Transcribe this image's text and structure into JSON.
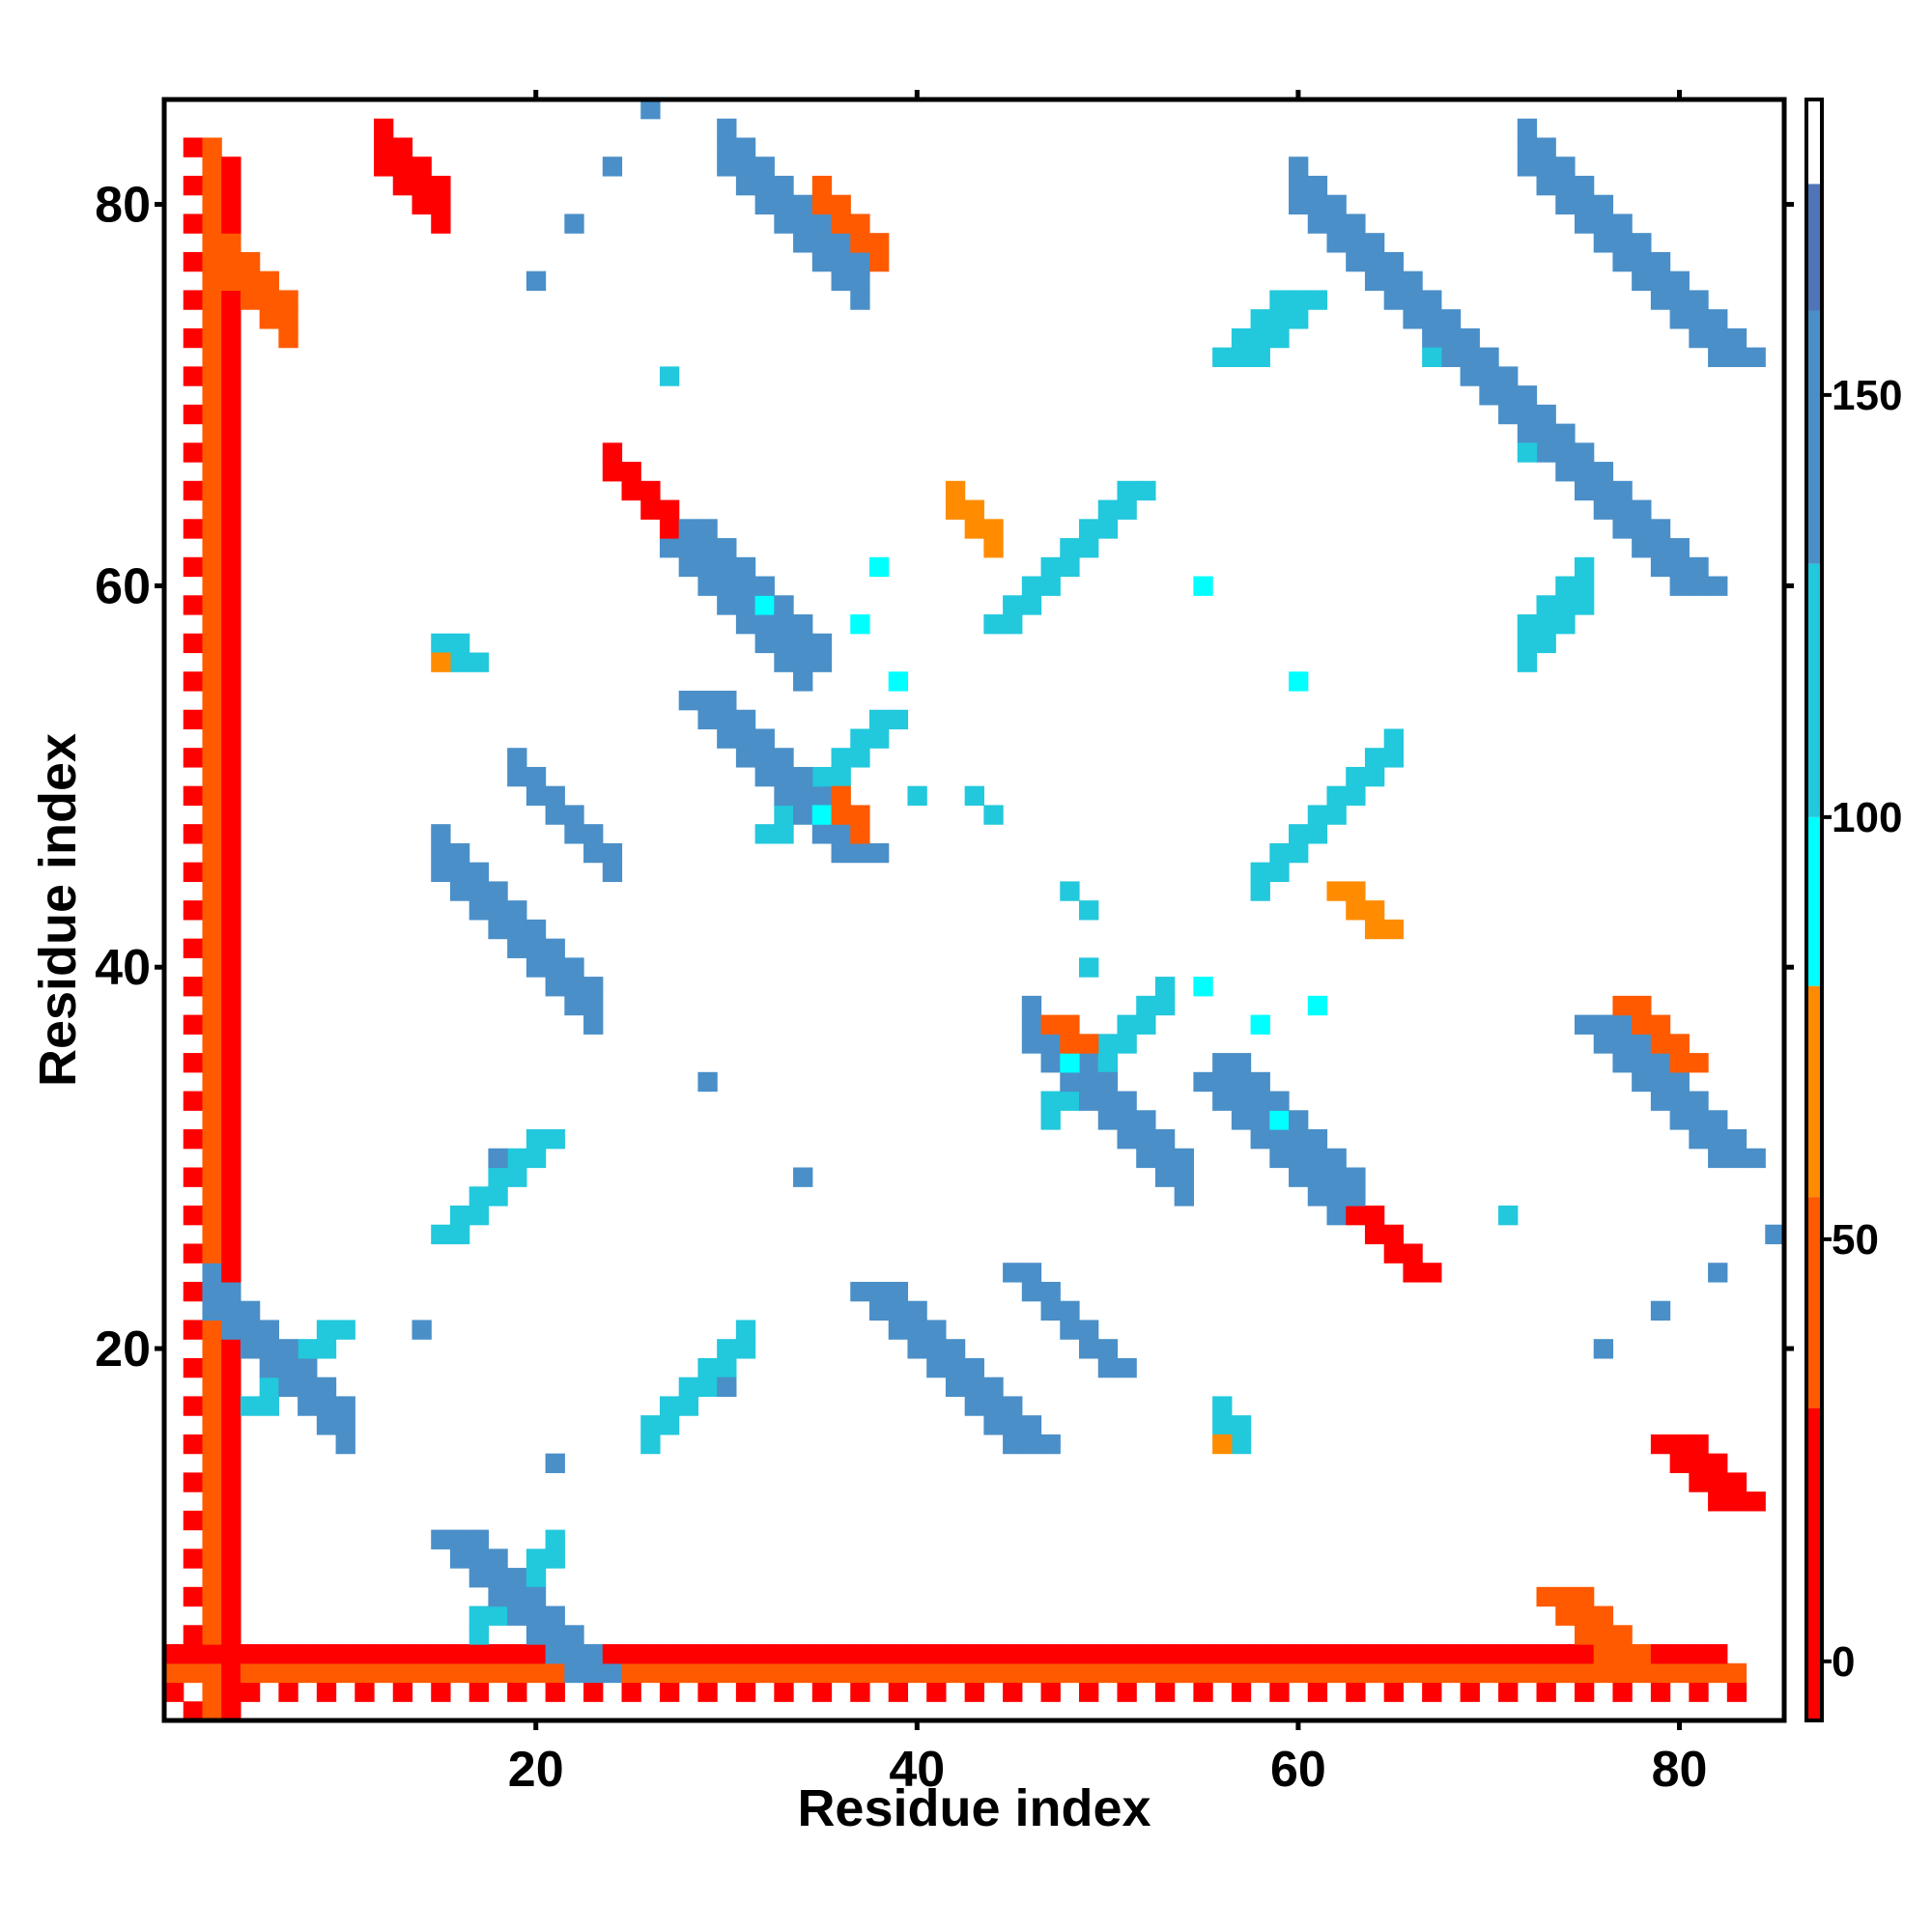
{
  "chart_data": {
    "type": "heatmap",
    "title": "",
    "xlabel": "Residue index",
    "ylabel": "Residue index",
    "xlim": [
      0.5,
      85.5
    ],
    "ylim": [
      0.5,
      85.5
    ],
    "x_ticks": [
      20,
      40,
      60,
      80
    ],
    "y_ticks": [
      20,
      40,
      60,
      80
    ],
    "grid": false,
    "colorbar": {
      "range": [
        -7,
        185
      ],
      "ticks": [
        0,
        50,
        100,
        150
      ],
      "bands": [
        {
          "from": -7,
          "to": 30,
          "color": "#ff0000"
        },
        {
          "from": 30,
          "to": 55,
          "color": "#ff5a00"
        },
        {
          "from": 55,
          "to": 80,
          "color": "#ff8c00"
        },
        {
          "from": 80,
          "to": 100,
          "color": "#00ffff"
        },
        {
          "from": 100,
          "to": 130,
          "color": "#22c8dc"
        },
        {
          "from": 130,
          "to": 160,
          "color": "#4a8fc8"
        },
        {
          "from": 160,
          "to": 175,
          "color": "#4f74b8"
        },
        {
          "from": 175,
          "to": 185,
          "color": "#ffffff"
        }
      ]
    },
    "palette": {
      "red": "#ff0000",
      "red_orange": "#ff5a00",
      "orange": "#ff8c00",
      "cyan": "#00ffff",
      "light_blue": "#22c8dc",
      "blue": "#4a8fc8"
    },
    "matrix_size": 85,
    "symmetric": true,
    "lower_triangle_segments": [
      {
        "start": [
          2,
          1
        ],
        "len": 84,
        "di": 0,
        "dj": 1,
        "w": 1,
        "v": 0,
        "stride": 2
      },
      {
        "start": [
          3,
          1
        ],
        "len": 83,
        "di": 0,
        "dj": 1,
        "w": 1,
        "v": 40
      },
      {
        "start": [
          4,
          1
        ],
        "len": 82,
        "di": 0,
        "dj": 1,
        "w": 1,
        "v": 10
      },
      {
        "start": [
          17,
          5
        ],
        "len": 5,
        "di": 1,
        "dj": 1,
        "w": 2,
        "v": 110
      },
      {
        "start": [
          26,
          15
        ],
        "len": 6,
        "di": 1,
        "dj": 1,
        "w": 2,
        "v": 110
      },
      {
        "start": [
          47,
          32
        ],
        "len": 7,
        "di": 1,
        "dj": 1,
        "w": 2,
        "v": 120
      },
      {
        "start": [
          58,
          44
        ],
        "len": 8,
        "di": 1,
        "dj": 1,
        "w": 2,
        "v": 115
      },
      {
        "start": [
          72,
          56
        ],
        "len": 4,
        "di": 1,
        "dj": 1,
        "w": 3,
        "v": 105
      },
      {
        "start": [
          3,
          22
        ],
        "len": 8,
        "di": 1,
        "dj": -1,
        "w": 3,
        "v": 140
      },
      {
        "start": [
          15,
          45
        ],
        "len": 9,
        "di": 1,
        "dj": -1,
        "w": 3,
        "v": 140
      },
      {
        "start": [
          19,
          50
        ],
        "len": 6,
        "di": 1,
        "dj": -1,
        "w": 2,
        "v": 138
      },
      {
        "start": [
          27,
          62
        ],
        "len": 8,
        "di": 1,
        "dj": -1,
        "w": 3,
        "v": 142
      },
      {
        "start": [
          29,
          62
        ],
        "len": 7,
        "di": 1,
        "dj": -1,
        "w": 2,
        "v": 145
      },
      {
        "start": [
          30,
          82
        ],
        "len": 8,
        "di": 1,
        "dj": -1,
        "w": 3,
        "v": 142
      },
      {
        "start": [
          46,
          36
        ],
        "len": 9,
        "di": 1,
        "dj": -1,
        "w": 3,
        "v": 140
      },
      {
        "start": [
          60,
          80
        ],
        "len": 13,
        "di": 1,
        "dj": -1,
        "w": 3,
        "v": 142
      },
      {
        "start": [
          72,
          82
        ],
        "len": 11,
        "di": 1,
        "dj": -1,
        "w": 3,
        "v": 142
      },
      {
        "start": [
          4,
          76
        ],
        "len": 4,
        "di": 1,
        "dj": -1,
        "w": 3,
        "v": 30
      },
      {
        "start": [
          12,
          82
        ],
        "len": 4,
        "di": 1,
        "dj": -1,
        "w": 3,
        "v": 20
      },
      {
        "start": [
          24,
          66
        ],
        "len": 4,
        "di": 1,
        "dj": -1,
        "w": 2,
        "v": 25
      },
      {
        "start": [
          35,
          80
        ],
        "len": 4,
        "di": 1,
        "dj": -1,
        "w": 2,
        "v": 45
      },
      {
        "start": [
          42,
          64
        ],
        "len": 3,
        "di": 1,
        "dj": -1,
        "w": 2,
        "v": 70
      },
      {
        "start": [
          36,
          48
        ],
        "len": 2,
        "di": 1,
        "dj": -1,
        "w": 2,
        "v": 30
      },
      {
        "start": [
          56,
          16
        ],
        "len": 2,
        "di": 1,
        "dj": -1,
        "w": 2,
        "v": 110
      }
    ],
    "lower_triangle_points": [
      {
        "i": 14,
        "j": 21,
        "v": 140
      },
      {
        "i": 18,
        "j": 30,
        "v": 140
      },
      {
        "i": 20,
        "j": 76,
        "v": 140
      },
      {
        "i": 22,
        "j": 79,
        "v": 140
      },
      {
        "i": 24,
        "j": 82,
        "v": 140
      },
      {
        "i": 26,
        "j": 85,
        "v": 140
      },
      {
        "i": 27,
        "j": 71,
        "v": 115
      },
      {
        "i": 32,
        "j": 59,
        "v": 90
      },
      {
        "i": 34,
        "j": 29,
        "v": 140
      },
      {
        "i": 38,
        "j": 61,
        "v": 90
      },
      {
        "i": 40,
        "j": 49,
        "v": 120
      },
      {
        "i": 48,
        "j": 35,
        "v": 85
      },
      {
        "i": 48,
        "j": 44,
        "v": 120
      },
      {
        "i": 49,
        "j": 43,
        "v": 110
      },
      {
        "i": 55,
        "j": 39,
        "v": 90
      },
      {
        "i": 56,
        "j": 15,
        "v": 60
      },
      {
        "i": 58,
        "j": 37,
        "v": 90
      },
      {
        "i": 60,
        "j": 55,
        "v": 80
      },
      {
        "i": 63,
        "j": 44,
        "v": 60
      },
      {
        "i": 72,
        "j": 67,
        "v": 110
      }
    ]
  }
}
